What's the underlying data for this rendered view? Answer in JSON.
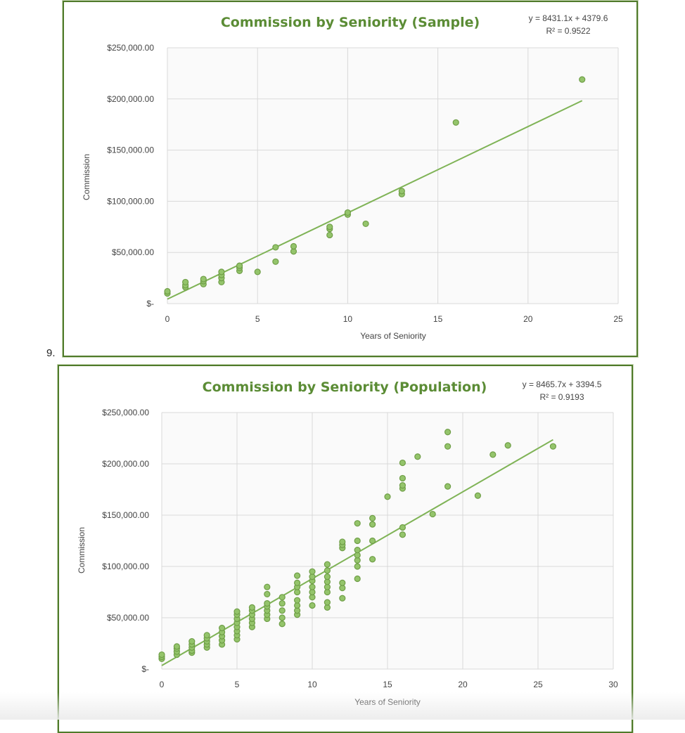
{
  "question_number": "9.",
  "colors": {
    "frame": "#4f7a2a",
    "title": "#5b8c35",
    "points": "#94c46b",
    "trend": "#7fb356"
  },
  "chart_data": [
    {
      "type": "scatter",
      "title": "Commission by Seniority (Sample)",
      "equation": "y = 8431.1x + 4379.6",
      "r_squared": "R² = 0.9522",
      "xlabel": "Years of Seniority",
      "ylabel": "Commission",
      "xlim": [
        0,
        25
      ],
      "ylim": [
        0,
        250000
      ],
      "x_ticks": [
        "0",
        "5",
        "10",
        "15",
        "20",
        "25"
      ],
      "y_ticks": [
        "$-",
        "$50,000.00",
        "$100,000.00",
        "$150,000.00",
        "$200,000.00",
        "$250,000.00"
      ],
      "trendline": {
        "slope": 8431.1,
        "intercept": 4379.6,
        "x_range": [
          0,
          23
        ]
      },
      "grid": true,
      "points": [
        [
          0,
          10000
        ],
        [
          0,
          12000
        ],
        [
          1,
          16000
        ],
        [
          1,
          18000
        ],
        [
          1,
          21000
        ],
        [
          2,
          19000
        ],
        [
          2,
          22000
        ],
        [
          2,
          24000
        ],
        [
          3,
          21000
        ],
        [
          3,
          25000
        ],
        [
          3,
          28000
        ],
        [
          3,
          31000
        ],
        [
          4,
          32000
        ],
        [
          4,
          35000
        ],
        [
          4,
          37000
        ],
        [
          5,
          31000
        ],
        [
          6,
          41000
        ],
        [
          6,
          55000
        ],
        [
          7,
          51000
        ],
        [
          7,
          56000
        ],
        [
          9,
          67000
        ],
        [
          9,
          73000
        ],
        [
          9,
          75000
        ],
        [
          10,
          87000
        ],
        [
          10,
          89000
        ],
        [
          11,
          78000
        ],
        [
          13,
          107000
        ],
        [
          13,
          110000
        ],
        [
          16,
          177000
        ],
        [
          23,
          219000
        ]
      ]
    },
    {
      "type": "scatter",
      "title": "Commission by Seniority (Population)",
      "equation": "y = 8465.7x + 3394.5",
      "r_squared": "R² = 0.9193",
      "xlabel": "Years of Seniority",
      "ylabel": "Commission",
      "xlim": [
        0,
        30
      ],
      "ylim": [
        0,
        250000
      ],
      "x_ticks": [
        "0",
        "5",
        "10",
        "15",
        "20",
        "25",
        "30"
      ],
      "y_ticks": [
        "$-",
        "$50,000.00",
        "$100,000.00",
        "$150,000.00",
        "$200,000.00",
        "$250,000.00"
      ],
      "trendline": {
        "slope": 8465.7,
        "intercept": 3394.5,
        "x_range": [
          0,
          26
        ]
      },
      "grid": true,
      "points": [
        [
          0,
          10000
        ],
        [
          0,
          12000
        ],
        [
          0,
          14000
        ],
        [
          1,
          14000
        ],
        [
          1,
          17000
        ],
        [
          1,
          20000
        ],
        [
          1,
          22000
        ],
        [
          2,
          16000
        ],
        [
          2,
          18000
        ],
        [
          2,
          21000
        ],
        [
          2,
          24000
        ],
        [
          2,
          27000
        ],
        [
          3,
          21000
        ],
        [
          3,
          24000
        ],
        [
          3,
          27000
        ],
        [
          3,
          30000
        ],
        [
          3,
          33000
        ],
        [
          4,
          24000
        ],
        [
          4,
          28000
        ],
        [
          4,
          32000
        ],
        [
          4,
          36000
        ],
        [
          4,
          40000
        ],
        [
          5,
          29000
        ],
        [
          5,
          33000
        ],
        [
          5,
          37000
        ],
        [
          5,
          41000
        ],
        [
          5,
          45000
        ],
        [
          5,
          49000
        ],
        [
          5,
          53000
        ],
        [
          5,
          56000
        ],
        [
          6,
          41000
        ],
        [
          6,
          45000
        ],
        [
          6,
          49000
        ],
        [
          6,
          53000
        ],
        [
          6,
          57000
        ],
        [
          6,
          60000
        ],
        [
          7,
          49000
        ],
        [
          7,
          53000
        ],
        [
          7,
          57000
        ],
        [
          7,
          61000
        ],
        [
          7,
          64000
        ],
        [
          7,
          73000
        ],
        [
          7,
          80000
        ],
        [
          8,
          44000
        ],
        [
          8,
          50000
        ],
        [
          8,
          57000
        ],
        [
          8,
          64000
        ],
        [
          8,
          70000
        ],
        [
          9,
          53000
        ],
        [
          9,
          57000
        ],
        [
          9,
          62000
        ],
        [
          9,
          67000
        ],
        [
          9,
          75000
        ],
        [
          9,
          80000
        ],
        [
          9,
          84000
        ],
        [
          9,
          91000
        ],
        [
          10,
          62000
        ],
        [
          10,
          70000
        ],
        [
          10,
          75000
        ],
        [
          10,
          80000
        ],
        [
          10,
          86000
        ],
        [
          10,
          90000
        ],
        [
          10,
          95000
        ],
        [
          11,
          60000
        ],
        [
          11,
          65000
        ],
        [
          11,
          75000
        ],
        [
          11,
          80000
        ],
        [
          11,
          85000
        ],
        [
          11,
          90000
        ],
        [
          11,
          96000
        ],
        [
          11,
          102000
        ],
        [
          12,
          69000
        ],
        [
          12,
          79000
        ],
        [
          12,
          84000
        ],
        [
          12,
          118000
        ],
        [
          12,
          121000
        ],
        [
          12,
          124000
        ],
        [
          13,
          88000
        ],
        [
          13,
          100000
        ],
        [
          13,
          106000
        ],
        [
          13,
          111000
        ],
        [
          13,
          116000
        ],
        [
          13,
          125000
        ],
        [
          13,
          142000
        ],
        [
          14,
          107000
        ],
        [
          14,
          125000
        ],
        [
          14,
          141000
        ],
        [
          14,
          147000
        ],
        [
          15,
          168000
        ],
        [
          16,
          131000
        ],
        [
          16,
          138000
        ],
        [
          16,
          176000
        ],
        [
          16,
          179000
        ],
        [
          16,
          186000
        ],
        [
          16,
          201000
        ],
        [
          17,
          207000
        ],
        [
          18,
          151000
        ],
        [
          19,
          178000
        ],
        [
          19,
          217000
        ],
        [
          19,
          231000
        ],
        [
          21,
          169000
        ],
        [
          22,
          209000
        ],
        [
          23,
          218000
        ],
        [
          26,
          217000
        ]
      ]
    }
  ]
}
